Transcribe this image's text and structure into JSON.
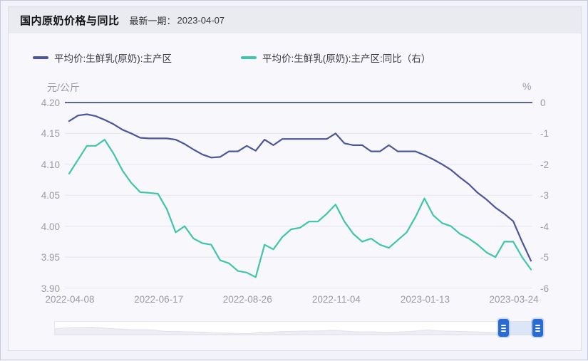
{
  "header": {
    "title": "国内原奶价格与同比",
    "latest_label": "最新一期：",
    "latest_date": "2023-04-07"
  },
  "legend": {
    "items": [
      {
        "label": "平均价:生鲜乳(原奶):主产区",
        "color": "#4b559b"
      },
      {
        "label": "平均价:生鲜乳(原奶):主产区:同比（右）",
        "color": "#3fc5a9"
      }
    ]
  },
  "chart_data": {
    "type": "line",
    "title": "国内原奶价格与同比",
    "x_tick_labels": [
      "2022-04-08",
      "2022-06-17",
      "2022-08-26",
      "2022-11-04",
      "2023-01-13",
      "2023-03-24"
    ],
    "x_tick_weeks": [
      0,
      10,
      20,
      30,
      40,
      50
    ],
    "x_range_note": "53 weekly points from 2022-04-08 to 2023-04-07",
    "n_points": 53,
    "grid": true,
    "grid_color": "#e5e6ee",
    "zero_line_color": "#5a639b",
    "left_axis": {
      "unit": "元/公斤",
      "min": 3.9,
      "max": 4.2,
      "ticks": [
        "4.20",
        "4.15",
        "4.10",
        "4.05",
        "4.00",
        "3.95",
        "3.90"
      ]
    },
    "right_axis": {
      "unit": "%",
      "min": -6,
      "max": 0,
      "ticks": [
        "0",
        "-1",
        "-2",
        "-3",
        "-4",
        "-5",
        "-6"
      ]
    },
    "series": [
      {
        "name": "平均价:生鲜乳(原奶):主产区",
        "axis": "left",
        "color": "#4b559b",
        "values": [
          4.17,
          4.179,
          4.181,
          4.178,
          4.172,
          4.165,
          4.156,
          4.15,
          4.143,
          4.142,
          4.142,
          4.142,
          4.14,
          4.133,
          4.124,
          4.116,
          4.111,
          4.112,
          4.121,
          4.121,
          4.13,
          4.122,
          4.14,
          4.131,
          4.141,
          4.141,
          4.141,
          4.141,
          4.141,
          4.141,
          4.15,
          4.134,
          4.131,
          4.131,
          4.121,
          4.121,
          4.131,
          4.121,
          4.121,
          4.121,
          4.115,
          4.108,
          4.1,
          4.091,
          4.079,
          4.068,
          4.054,
          4.043,
          4.03,
          4.02,
          4.008,
          3.975,
          3.944
        ]
      },
      {
        "name": "平均价:生鲜乳(原奶):主产区:同比（右）",
        "axis": "right",
        "color": "#3fc5a9",
        "values": [
          -2.3,
          -1.85,
          -1.4,
          -1.4,
          -1.2,
          -1.65,
          -2.2,
          -2.6,
          -2.9,
          -2.92,
          -2.95,
          -3.45,
          -4.2,
          -4.0,
          -4.4,
          -4.55,
          -4.6,
          -5.1,
          -5.2,
          -5.45,
          -5.5,
          -5.65,
          -4.6,
          -4.75,
          -4.35,
          -4.1,
          -4.05,
          -3.85,
          -3.85,
          -3.6,
          -3.3,
          -3.85,
          -4.25,
          -4.5,
          -4.4,
          -4.6,
          -4.7,
          -4.45,
          -4.2,
          -3.7,
          -3.1,
          -3.65,
          -3.9,
          -4.0,
          -4.25,
          -4.4,
          -4.6,
          -4.85,
          -5.0,
          -4.5,
          -4.5,
          -5.0,
          -5.4
        ]
      }
    ]
  },
  "slider": {
    "handle_icon": "drag-handle-lines",
    "handle_color": "#2a6ad3",
    "selection_color": "#d9e3f6"
  }
}
